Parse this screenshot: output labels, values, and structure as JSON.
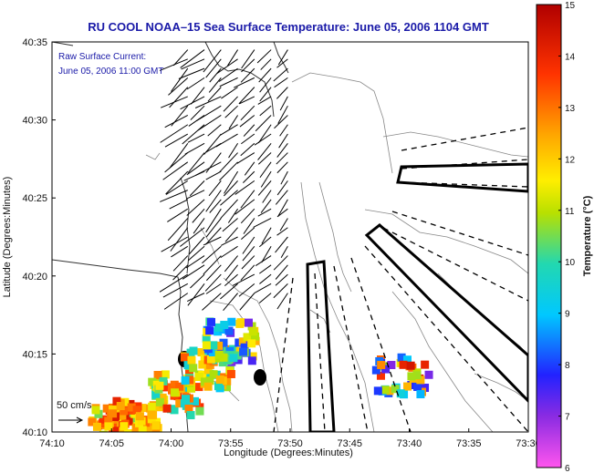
{
  "chart_data": {
    "type": "map",
    "title": "RU COOL  NOAA–15  Sea Surface Temperature:  June 05, 2006 1104 GMT",
    "annotation_lines": [
      "Raw Surface Current:",
      "June 05, 2006 11:00 GMT"
    ],
    "xlabel": "Longitude (Degrees:Minutes)",
    "ylabel": "Latitude (Degrees:Minutes)",
    "x_ticks": [
      "74:10",
      "74:05",
      "74:00",
      "73:55",
      "73:50",
      "73:45",
      "73:40",
      "73:35",
      "73:30"
    ],
    "y_ticks": [
      "40:35",
      "40:30",
      "40:25",
      "40:20",
      "40:15",
      "40:10"
    ],
    "xlim_minutes_west": [
      10,
      30
    ],
    "ylim_minutes_north": [
      10,
      35
    ],
    "scale_label": "50 cm/s",
    "colorbar": {
      "label": "Temperature (°C)",
      "ticks": [
        "15",
        "14",
        "13",
        "12",
        "11",
        "10",
        "9",
        "8",
        "7",
        "6"
      ],
      "range": [
        6,
        15
      ]
    },
    "sst_patches": [
      {
        "lon_min": 27.3,
        "lat_min": 10.3,
        "value_range": [
          10.5,
          14.5
        ]
      },
      {
        "lon_min": 26.6,
        "lat_min": 10.7,
        "value_range": [
          11.5,
          14.5
        ]
      },
      {
        "lon_min": 24.8,
        "lat_min": 12.4,
        "value_range": [
          9.5,
          14.0
        ]
      },
      {
        "lon_min": 23.4,
        "lat_min": 14.1,
        "value_range": [
          9.0,
          13.5
        ]
      },
      {
        "lon_min": 22.5,
        "lat_min": 15.8,
        "value_range": [
          7.0,
          12.5
        ]
      },
      {
        "lon_min": 15.3,
        "lat_min": 13.6,
        "value_range": [
          7.0,
          14.5
        ]
      }
    ],
    "current_region": {
      "lon_min_range": [
        19.5,
        28.5
      ],
      "lat_min_range": [
        18.5,
        34.5
      ]
    }
  }
}
